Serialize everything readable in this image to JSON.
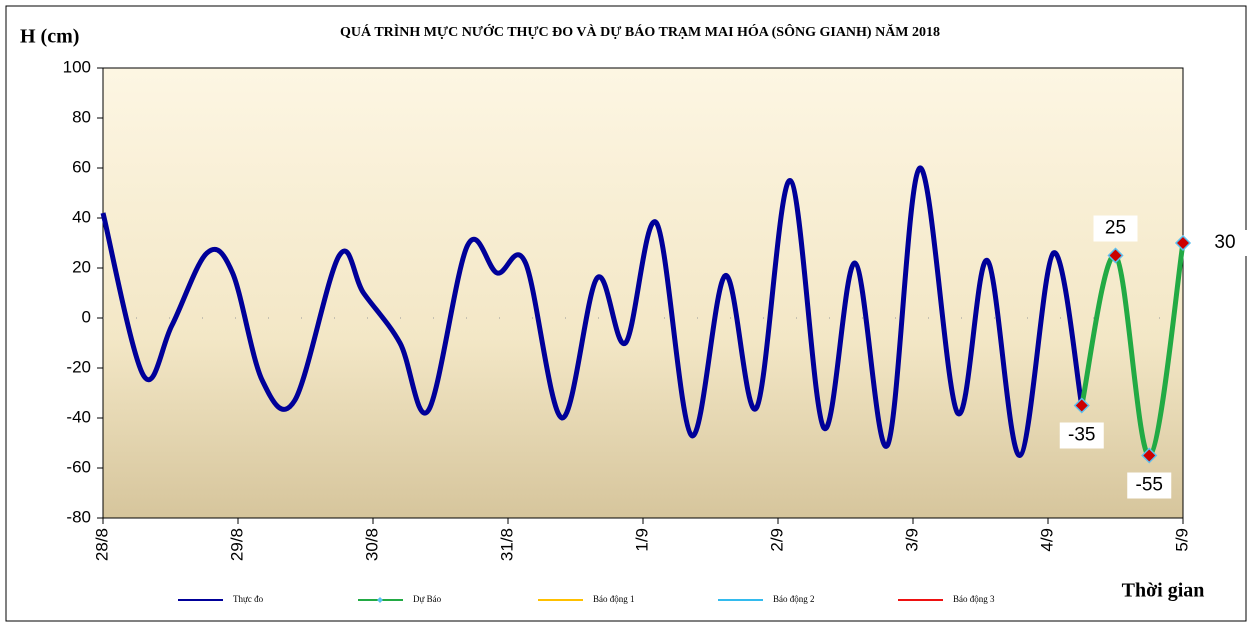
{
  "chart_data": {
    "type": "line",
    "title": "QUÁ TRÌNH MỰC NƯỚC THỰC ĐO VÀ DỰ BÁO TRẠM MAI HÓA (SÔNG GIANH) NĂM  2018",
    "y_label": "H (cm)",
    "x_label": "Thời gian",
    "xlim": [
      0,
      8
    ],
    "xticks": [
      {
        "value": 0,
        "label": "28/8"
      },
      {
        "value": 1,
        "label": "29/8"
      },
      {
        "value": 2,
        "label": "30/8"
      },
      {
        "value": 3,
        "label": "31/8"
      },
      {
        "value": 4,
        "label": "1/9"
      },
      {
        "value": 5,
        "label": "2/9"
      },
      {
        "value": 6,
        "label": "3/9"
      },
      {
        "value": 7,
        "label": "4/9"
      },
      {
        "value": 8,
        "label": "5/9"
      }
    ],
    "ylim": [
      -80,
      100
    ],
    "yticks": [
      -80,
      -60,
      -40,
      -20,
      0,
      20,
      40,
      60,
      80,
      100
    ],
    "grid": false,
    "series": [
      {
        "name": "Thực đo",
        "color": "#000099",
        "x": [
          0,
          0.3,
          0.51,
          0.77,
          0.96,
          1.18,
          1.42,
          1.75,
          1.93,
          2.2,
          2.41,
          2.7,
          2.92,
          3.13,
          3.4,
          3.66,
          3.87,
          4.1,
          4.36,
          4.61,
          4.84,
          5.09,
          5.34,
          5.57,
          5.81,
          6.05,
          6.33,
          6.55,
          6.79,
          7.04,
          7.25
        ],
        "values": [
          42,
          -23,
          -3,
          26,
          18,
          -25,
          -33,
          25,
          10,
          -10,
          -37,
          29,
          18,
          22,
          -40,
          16,
          -10,
          38,
          -47,
          17,
          -36,
          55,
          -44,
          22,
          -51,
          60,
          -38,
          23,
          -55,
          26,
          -35
        ]
      },
      {
        "name": "Dự Báo",
        "color": "#22aa44",
        "marker_color": "#cc0000",
        "x": [
          7.25,
          7.5,
          7.75,
          8
        ],
        "values": [
          -35,
          25,
          -55,
          30
        ]
      },
      {
        "name": "Báo động 1",
        "color": "#ffc000",
        "values": []
      },
      {
        "name": "Báo động 2",
        "color": "#33bbee",
        "values": []
      },
      {
        "name": "Báo động 3",
        "color": "#ee1111",
        "values": []
      }
    ]
  }
}
